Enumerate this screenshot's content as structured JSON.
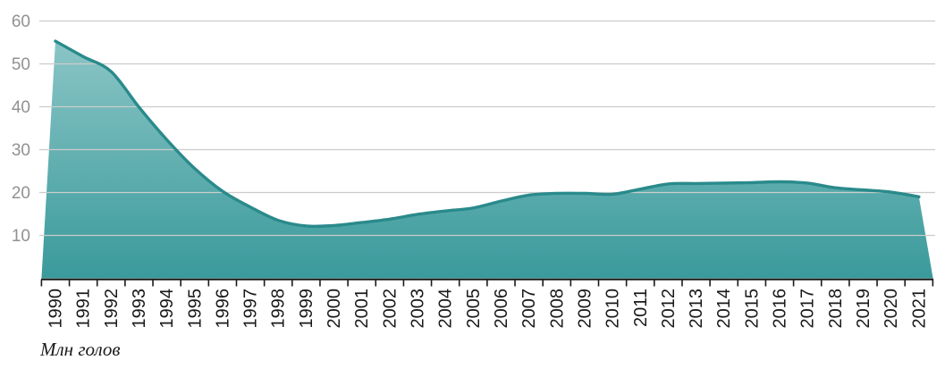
{
  "chart_data": {
    "type": "area",
    "title": "",
    "xlabel": "",
    "ylabel": "Млн голов",
    "categories": [
      "1990",
      "1991",
      "1992",
      "1993",
      "1994",
      "1995",
      "1996",
      "1997",
      "1998",
      "1999",
      "2000",
      "2001",
      "2002",
      "2003",
      "2004",
      "2005",
      "2006",
      "2007",
      "2008",
      "2009",
      "2010",
      "2011",
      "2012",
      "2013",
      "2014",
      "2015",
      "2016",
      "2017",
      "2018",
      "2019",
      "2020",
      "2021"
    ],
    "values": [
      55.3,
      51.7,
      48.2,
      39.9,
      32.3,
      25.6,
      20.3,
      16.6,
      13.5,
      12.2,
      12.3,
      13.0,
      13.8,
      14.9,
      15.7,
      16.4,
      18.0,
      19.4,
      19.8,
      19.8,
      19.6,
      20.8,
      22.0,
      22.1,
      22.2,
      22.3,
      22.5,
      22.2,
      21.1,
      20.6,
      20.1,
      19.0
    ],
    "ylim": [
      0,
      60
    ],
    "yticks": [
      10,
      20,
      30,
      40,
      50,
      60
    ],
    "grid": true,
    "legend": false,
    "colors": {
      "area_fill_top": "#8bc5c6",
      "area_fill_bottom": "#3a9a9b",
      "line": "#2a8a8b",
      "gridline": "#cccccc",
      "axis_line": "#1a1a1a",
      "tick": "#1a1a1a",
      "x_label_color": "#1a1a1a",
      "y_label_color": "#919191",
      "background": "#ffffff"
    }
  }
}
